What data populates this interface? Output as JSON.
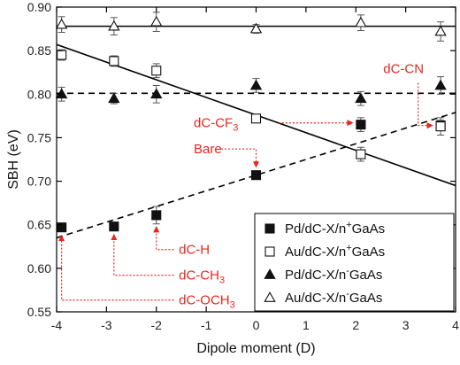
{
  "chart_data": {
    "type": "scatter",
    "xlabel": "Dipole moment (D)",
    "ylabel": "SBH (eV)",
    "xlim": [
      -4,
      4
    ],
    "ylim": [
      0.55,
      0.9
    ],
    "xticks": [
      -4,
      -3,
      -2,
      -1,
      0,
      1,
      2,
      3,
      4
    ],
    "yticks": [
      0.55,
      0.6,
      0.65,
      0.7,
      0.75,
      0.8,
      0.85,
      0.9
    ],
    "grid": false,
    "legend_position": "bottom-right",
    "series": [
      {
        "name": "Pd/dC-X/n⁺GaAs",
        "legend_main": "Pd/dC-X/n",
        "legend_sup": "+",
        "legend_tail": "GaAs",
        "marker": "filled-square",
        "x": [
          -3.9,
          -2.85,
          -2.0,
          0.0,
          2.1,
          3.7
        ],
        "y": [
          0.647,
          0.648,
          0.661,
          0.707,
          0.765,
          0.764
        ],
        "err": [
          0.004,
          0.003,
          0.01,
          0.004,
          0.008,
          0.006
        ]
      },
      {
        "name": "Au/dC-X/n⁺GaAs",
        "legend_main": "Au/dC-X/n",
        "legend_sup": "+",
        "legend_tail": "GaAs",
        "marker": "open-square",
        "x": [
          -3.9,
          -2.85,
          -2.0,
          0.0,
          2.1,
          3.7
        ],
        "y": [
          0.845,
          0.838,
          0.827,
          0.772,
          0.731,
          0.763
        ],
        "err": [
          0.006,
          0.006,
          0.008,
          0.004,
          0.008,
          0.01
        ]
      },
      {
        "name": "Pd/dC-X/n⁻GaAs",
        "legend_main": "Pd/dC-X/n",
        "legend_sup": "-",
        "legend_tail": "GaAs",
        "marker": "filled-triangle",
        "x": [
          -3.9,
          -2.85,
          -2.0,
          0.0,
          2.1,
          3.7
        ],
        "y": [
          0.8,
          0.795,
          0.8,
          0.81,
          0.795,
          0.81
        ],
        "err": [
          0.008,
          0.006,
          0.01,
          0.008,
          0.008,
          0.01
        ]
      },
      {
        "name": "Au/dC-X/n⁻GaAs",
        "legend_main": "Au/dC-X/n",
        "legend_sup": "-",
        "legend_tail": "GaAs",
        "marker": "open-triangle",
        "x": [
          -3.9,
          -2.85,
          -2.0,
          0.0,
          2.1,
          3.7
        ],
        "y": [
          0.88,
          0.878,
          0.883,
          0.875,
          0.882,
          0.872
        ],
        "err": [
          0.009,
          0.01,
          0.011,
          0.005,
          0.009,
          0.011
        ]
      }
    ],
    "fit_lines": [
      {
        "style": "solid",
        "x": [
          -4,
          4
        ],
        "y": [
          0.857,
          0.695
        ]
      },
      {
        "style": "dashed",
        "x": [
          -4,
          4
        ],
        "y": [
          0.635,
          0.779
        ]
      },
      {
        "style": "dashed",
        "x": [
          -4,
          4
        ],
        "y": [
          0.801,
          0.801
        ]
      },
      {
        "style": "solid",
        "x": [
          -4,
          4
        ],
        "y": [
          0.878,
          0.878
        ]
      }
    ],
    "annotations": [
      {
        "label_main": "dC-CN",
        "label_sub": "",
        "target": [
          3.7,
          0.764
        ]
      },
      {
        "label_main": "dC-CF",
        "label_sub": "3",
        "target": [
          2.1,
          0.765
        ]
      },
      {
        "label_main": "Bare",
        "label_sub": "",
        "target": [
          0.0,
          0.707
        ]
      },
      {
        "label_main": "dC-H",
        "label_sub": "",
        "target": [
          -2.0,
          0.661
        ]
      },
      {
        "label_main": "dC-CH",
        "label_sub": "3",
        "target": [
          -2.85,
          0.648
        ]
      },
      {
        "label_main": "dC-OCH",
        "label_sub": "3",
        "target": [
          -3.9,
          0.647
        ]
      }
    ],
    "colors": {
      "markers": "#111111",
      "annotation": "#e8261d"
    }
  }
}
